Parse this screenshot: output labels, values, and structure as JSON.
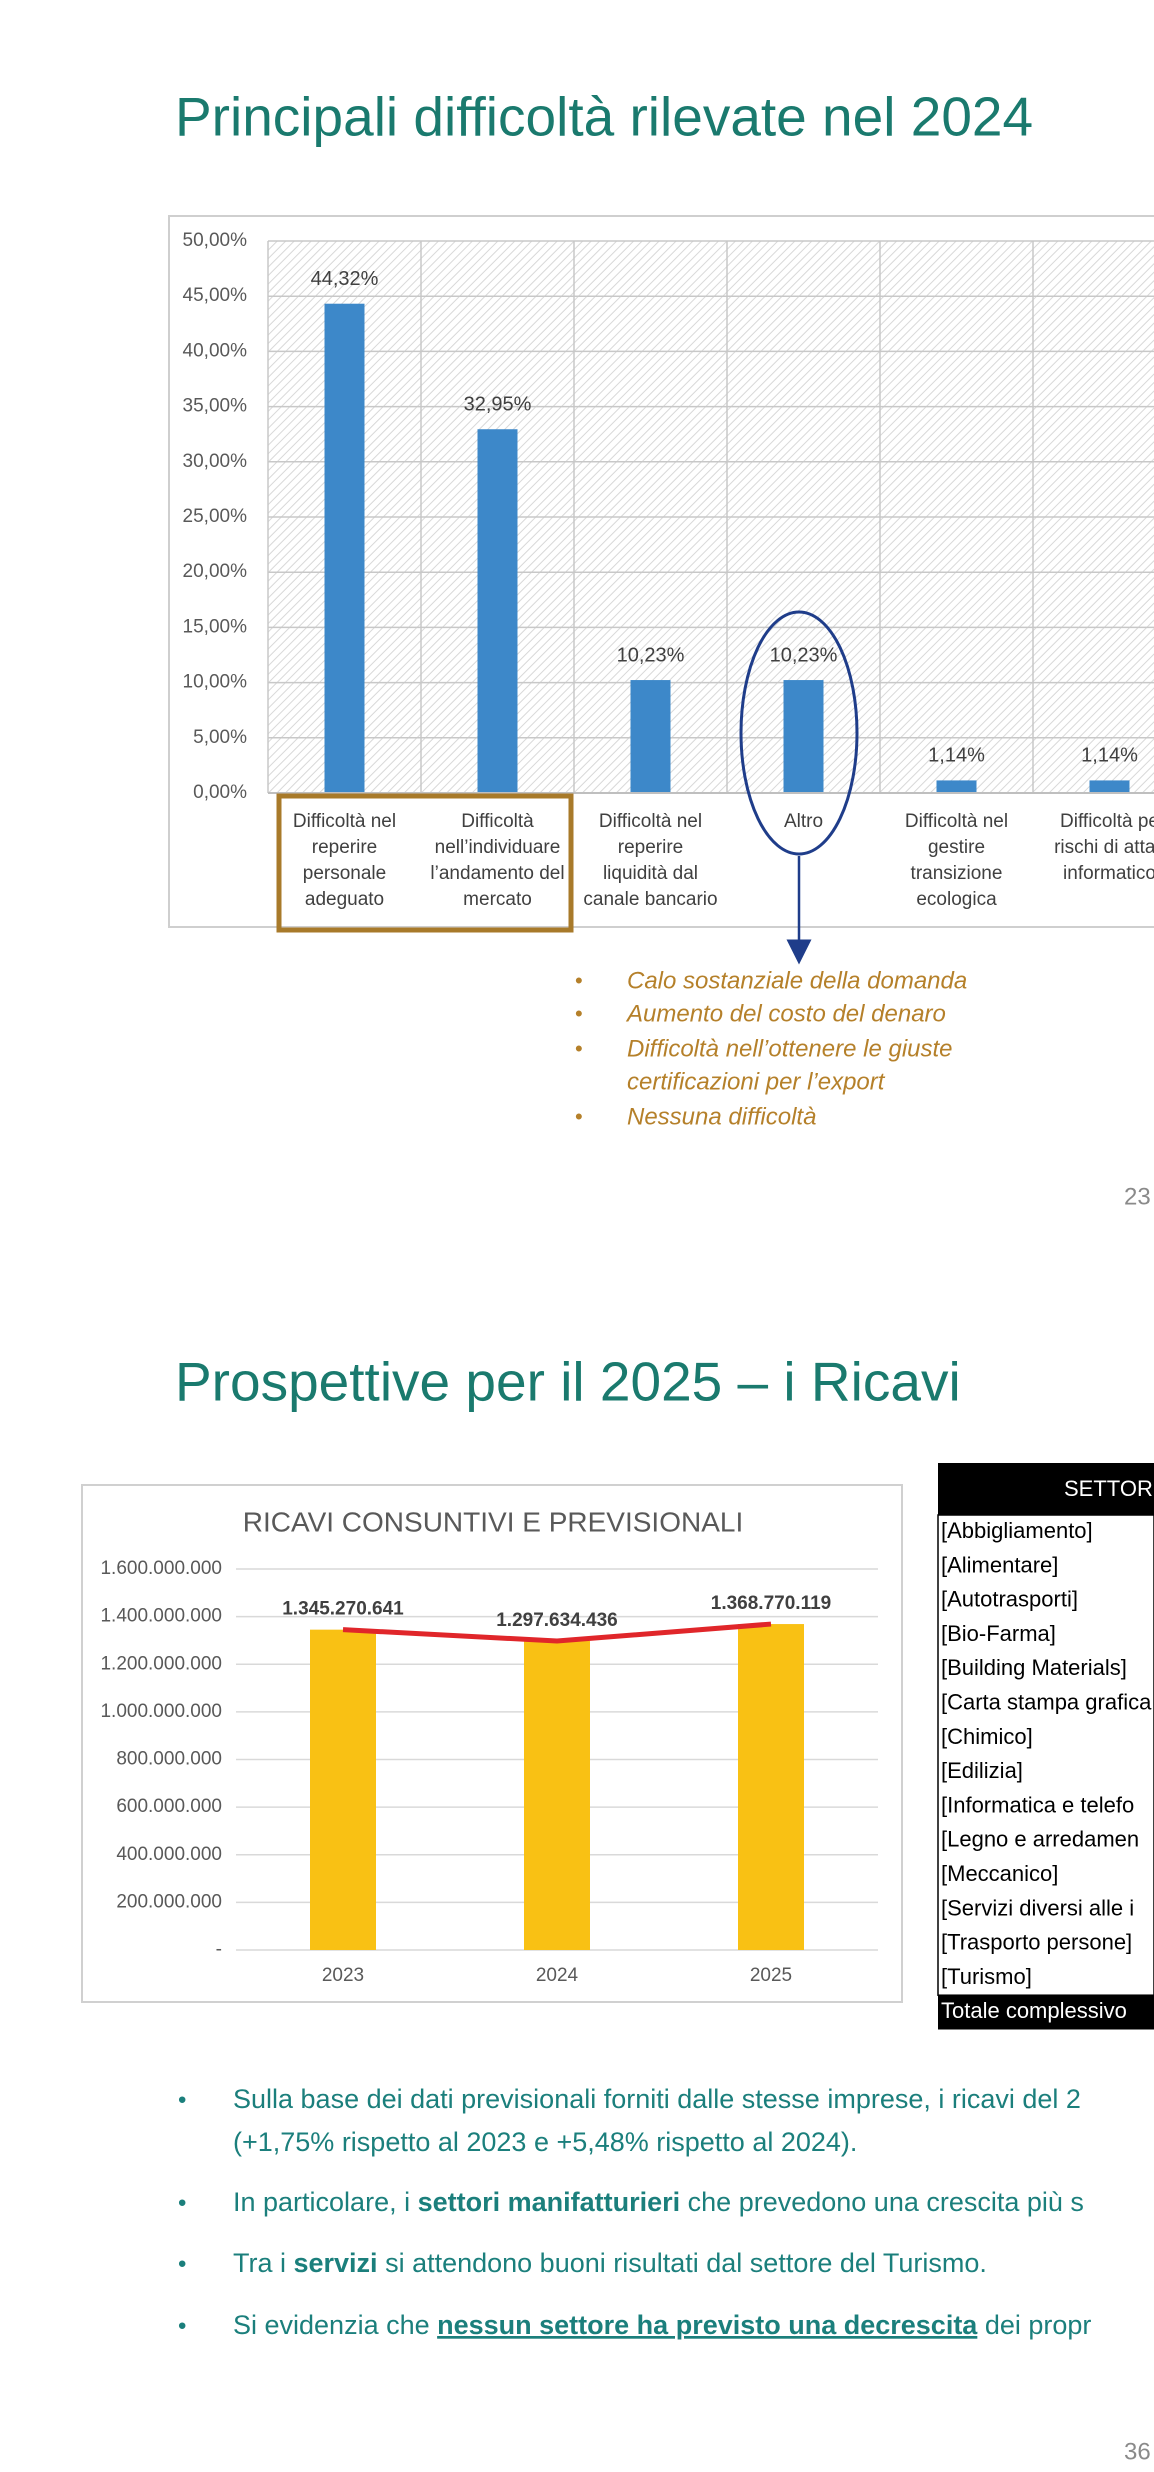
{
  "chart_data": [
    {
      "type": "bar",
      "categories": [
        "Difficoltà nel reperire personale adeguato",
        "Difficoltà nell’individuare l’andamento del mercato",
        "Difficoltà nel reperire liquidità dal canale bancario",
        "Altro",
        "Difficoltà nel gestire transizione ecologica",
        "Difficoltà pe rischi di attac informatico"
      ],
      "values": [
        44.32,
        32.95,
        10.23,
        10.23,
        1.14,
        1.14
      ],
      "value_labels": [
        "44,32%",
        "32,95%",
        "10,23%",
        "10,23%",
        "1,14%",
        "1,14%"
      ],
      "color": "#3d88c9",
      "ylim": [
        0,
        50
      ],
      "yticks": [
        {
          "value": 0,
          "label": "0,00%"
        },
        {
          "value": 5,
          "label": "5,00%"
        },
        {
          "value": 10,
          "label": "10,00%"
        },
        {
          "value": 15,
          "label": "15,00%"
        },
        {
          "value": 20,
          "label": "20,00%"
        },
        {
          "value": 25,
          "label": "25,00%"
        },
        {
          "value": 30,
          "label": "30,00%"
        },
        {
          "value": 35,
          "label": "35,00%"
        },
        {
          "value": 40,
          "label": "40,00%"
        },
        {
          "value": 45,
          "label": "45,00%"
        },
        {
          "value": 50,
          "label": "50,00%"
        }
      ],
      "grid": true
    },
    {
      "type": "bar",
      "title": "RICAVI CONSUNTIVI E PREVISIONALI",
      "categories": [
        "2023",
        "2024",
        "2025"
      ],
      "series": [
        {
          "type": "bar",
          "color": "#f9c114",
          "values": [
            1345270641,
            1297634436,
            1368770119
          ],
          "value_labels": [
            "1.345.270.641",
            "1.297.634.436",
            "1.368.770.119"
          ]
        },
        {
          "type": "line",
          "color": "#e0262a",
          "values": [
            1345270641,
            1297634436,
            1368770119
          ]
        }
      ],
      "ylim": [
        0,
        1600000000
      ],
      "yticks": [
        {
          "value": 0,
          "label": "-"
        },
        {
          "value": 200000000,
          "label": "200.000.000"
        },
        {
          "value": 400000000,
          "label": "400.000.000"
        },
        {
          "value": 600000000,
          "label": "600.000.000"
        },
        {
          "value": 800000000,
          "label": "800.000.000"
        },
        {
          "value": 1000000000,
          "label": "1.000.000.000"
        },
        {
          "value": 1200000000,
          "label": "1.200.000.000"
        },
        {
          "value": 1400000000,
          "label": "1.400.000.000"
        },
        {
          "value": 1600000000,
          "label": "1.600.000.000"
        }
      ],
      "grid": true
    }
  ],
  "slides": [
    {
      "title": "Principali difficoltà rilevate nel 2024",
      "notes": [
        "Calo sostanziale della domanda",
        "Aumento del costo del denaro",
        "Difficoltà nell’ottenere le giuste",
        "certificazioni per l’export",
        "Nessuna difficoltà"
      ],
      "page": "23"
    },
    {
      "title": "Prospettive per il 2025 – i Ricavi",
      "table": {
        "header": "SETTORI",
        "rows": [
          "[Abbigliamento]",
          "[Alimentare]",
          "[Autotrasporti]",
          "[Bio-Farma]",
          "[Building Materials]",
          "[Carta stampa grafica",
          "[Chimico]",
          "[Edilizia]",
          "[Informatica e telefo",
          "[Legno e arredamen",
          "[Meccanico]",
          "[Servizi diversi alle i",
          "[Trasporto persone]",
          "[Turismo]"
        ],
        "total": "Totale complessivo"
      },
      "bullets": [
        [
          {
            "text": "Sulla base dei dati previsionali forniti dalle stesse imprese, i ricavi del 2"
          }
        ],
        [
          {
            "text": "(+1,75% rispetto al 2023 e +5,48% rispetto al 2024)."
          }
        ],
        [
          {
            "text": "In particolare, i "
          },
          {
            "text": "settori manifatturieri",
            "bold": true
          },
          {
            "text": " che prevedono una crescita più s"
          }
        ],
        [
          {
            "text": "Tra i "
          },
          {
            "text": "servizi",
            "bold": true
          },
          {
            "text": " si attendono buoni risultati dal settore del Turismo."
          }
        ],
        [
          {
            "text": "Si evidenzia che "
          },
          {
            "text": "nessun settore ha previsto una decrescita",
            "bold": true,
            "underline": true
          },
          {
            "text": " dei propr"
          }
        ]
      ],
      "page": "36"
    }
  ]
}
